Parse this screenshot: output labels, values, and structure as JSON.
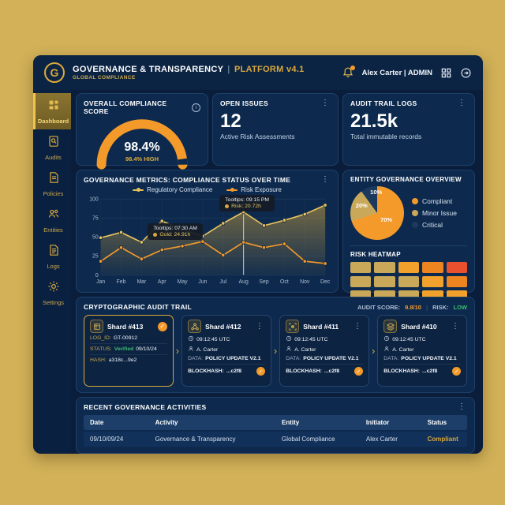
{
  "colors": {
    "accent_gold": "#D9A93C",
    "orange": "#F49A2A",
    "green": "#3DBA6F",
    "red": "#E8502E",
    "navy": "#0A2040",
    "canvas": "#D2B158"
  },
  "header": {
    "logo_letter": "G",
    "title": "GOVERNANCE & TRANSPARENCY",
    "separator": "|",
    "platform": "PLATFORM v4.1",
    "subtitle": "GLOBAL COMPLIANCE",
    "user": "Alex Carter | ADMIN"
  },
  "sidebar": {
    "items": [
      {
        "label": "Dashboard",
        "icon": "dashboard-icon",
        "active": true
      },
      {
        "label": "Audits",
        "icon": "audits-icon",
        "active": false
      },
      {
        "label": "Policies",
        "icon": "policies-icon",
        "active": false
      },
      {
        "label": "Entities",
        "icon": "entities-icon",
        "active": false
      },
      {
        "label": "Logs",
        "icon": "logs-icon",
        "active": false
      },
      {
        "label": "Settings",
        "icon": "settings-icon",
        "active": false
      }
    ]
  },
  "cards": {
    "compliance": {
      "title": "OVERALL COMPLIANCE SCORE",
      "value": "98.4%",
      "sub": "98.4% HIGH",
      "percent": 98.4
    },
    "open_issues": {
      "title": "OPEN ISSUES",
      "value": "12",
      "sub": "Active Risk Assessments"
    },
    "audit_logs": {
      "title": "AUDIT TRAIL LOGS",
      "value": "21.5k",
      "sub": "Total immutable records"
    }
  },
  "chart_data": {
    "type": "line",
    "title": "GOVERNANCE METRICS: COMPLIANCE STATUS OVER TIME",
    "categories": [
      "Jan",
      "Feb",
      "Mar",
      "Apr",
      "May",
      "Jun",
      "Jul",
      "Aug",
      "Sep",
      "Oct",
      "Nov",
      "Dec"
    ],
    "series": [
      {
        "name": "Regulatory Compliance",
        "color": "#E6C25C",
        "values": [
          49,
          56,
          43,
          71,
          60,
          51,
          68,
          83,
          65,
          72,
          80,
          92
        ],
        "area_fill": true
      },
      {
        "name": "Risk Exposure",
        "color": "#F49A2A",
        "values": [
          18,
          36,
          21,
          33,
          38,
          44,
          26,
          43,
          36,
          41,
          18,
          15
        ],
        "area_fill": false
      }
    ],
    "ylim": [
      0,
      100
    ],
    "yticks": [
      0,
      25,
      50,
      75,
      100
    ],
    "grid": true,
    "legend_position": "top",
    "crosshair_index": 7,
    "tooltips": [
      {
        "title": "Tooltips: 07:30 AM",
        "value": "Gold: 24.91h"
      },
      {
        "title": "Tooltips: 09:15 PM",
        "value": "Risk: 20.72h"
      }
    ]
  },
  "entity_overview": {
    "title": "ENTITY GOVERNANCE OVERVIEW",
    "chart_data": {
      "type": "pie",
      "slices": [
        {
          "label": "Compliant",
          "value": 70,
          "pct_label": "70%",
          "color": "#F49A2A"
        },
        {
          "label": "Minor Issue",
          "value": 20,
          "pct_label": "20%",
          "color": "#C9A85A"
        },
        {
          "label": "Critical",
          "value": 10,
          "pct_label": "10%",
          "color": "#1B3A5E"
        }
      ]
    }
  },
  "heatmap": {
    "title": "RISK HEATMAP",
    "palette": {
      "tan": "#C9A85A",
      "orange": "#F2A22C",
      "deep": "#EE8420",
      "red": "#E8502E"
    },
    "rows": [
      [
        "tan",
        "tan",
        "orange",
        "deep",
        "red"
      ],
      [
        "tan",
        "tan",
        "tan",
        "orange",
        "deep"
      ],
      [
        "tan",
        "tan",
        "tan",
        "orange",
        "orange"
      ]
    ]
  },
  "audit_trail": {
    "title": "CRYPTOGRAPHIC AUDIT TRAIL",
    "score_label": "AUDIT SCORE:",
    "score_value": "9.8/10",
    "divider": "|",
    "risk_label": "RISK:",
    "risk_value": "LOW",
    "shards": [
      {
        "icon": "cube-icon",
        "title": "Shard #413",
        "corner": "check",
        "highlighted": true,
        "fields": [
          {
            "label": "LOG_ID:",
            "label_cls": "lab",
            "parts": [
              {
                "text": "GT-00912",
                "cls": "wv"
              }
            ]
          },
          {
            "label": "STATUS:",
            "label_cls": "lab",
            "parts": [
              {
                "text": "Verified",
                "cls": "green"
              },
              {
                "text": "09/10/24",
                "cls": "wv"
              }
            ]
          },
          {
            "label": "HASH:",
            "label_cls": "lab",
            "parts": [
              {
                "text": "a318c...9e2",
                "cls": "wv"
              }
            ]
          }
        ]
      },
      {
        "icon": "network-icon",
        "title": "Shard #412",
        "corner": "kebab",
        "highlighted": false,
        "meta": [
          {
            "icon": "clock-icon",
            "text": "09:12:45 UTC"
          },
          {
            "icon": "person-icon",
            "text": "A. Carter"
          }
        ],
        "fields": [
          {
            "label": "DATA:",
            "label_cls": "lab2",
            "parts": [
              {
                "text": "POLICY UPDATE V2.1",
                "cls": "wv bold"
              }
            ]
          },
          {
            "label": "BLOCKHASH:",
            "label_cls": "wv bold",
            "parts": [
              {
                "text": "...c2f8",
                "cls": "wv bold"
              }
            ],
            "check": true
          }
        ]
      },
      {
        "icon": "scan-icon",
        "title": "Shard #411",
        "corner": "kebab",
        "highlighted": false,
        "meta": [
          {
            "icon": "clock-icon",
            "text": "09:12:45 UTC"
          },
          {
            "icon": "person-icon",
            "text": "A. Carter"
          }
        ],
        "fields": [
          {
            "label": "DATA:",
            "label_cls": "lab2",
            "parts": [
              {
                "text": "POLICY UPDATE V2.1",
                "cls": "wv bold"
              }
            ]
          },
          {
            "label": "BLOCKHASH:",
            "label_cls": "wv bold",
            "parts": [
              {
                "text": "...c2f8",
                "cls": "wv bold"
              }
            ],
            "check": true
          }
        ]
      },
      {
        "icon": "layers-icon",
        "title": "Shard #410",
        "corner": "kebab",
        "highlighted": false,
        "meta": [
          {
            "icon": "clock-icon",
            "text": "09:12:45 UTC"
          },
          {
            "icon": "person-icon",
            "text": "A. Carter"
          }
        ],
        "fields": [
          {
            "label": "DATA:",
            "label_cls": "lab2",
            "parts": [
              {
                "text": "POLICY UPDATE V2.1",
                "cls": "wv bold"
              }
            ]
          },
          {
            "label": "BLOCKHASH:",
            "label_cls": "wv bold",
            "parts": [
              {
                "text": "...c2f8",
                "cls": "wv bold"
              }
            ],
            "check": true
          }
        ]
      }
    ]
  },
  "activities": {
    "title": "RECENT GOVERNANCE ACTIVITIES",
    "columns": [
      "Date",
      "Activity",
      "Entity",
      "Initiator",
      "Status"
    ],
    "rows": [
      {
        "cells": [
          "09/10/09/24",
          "Governance & Transparency",
          "Global Compliance",
          "Alex Carter",
          "Compliant"
        ],
        "status_gold": true
      }
    ]
  }
}
